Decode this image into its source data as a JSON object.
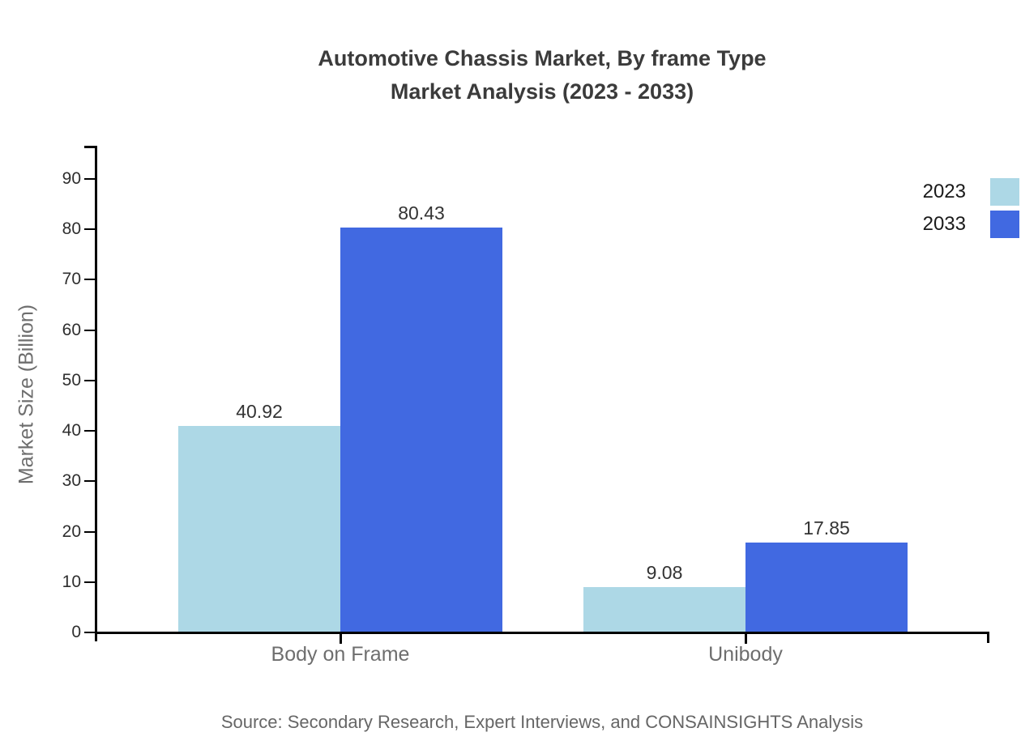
{
  "title": {
    "line1": "Automotive Chassis Market, By frame Type",
    "line2": "Market Analysis (2023 - 2033)"
  },
  "axes": {
    "ylabel": "Market Size (Billion)"
  },
  "source": "Source: Secondary Research, Expert Interviews, and CONSAINSIGHTS Analysis",
  "colors": {
    "series_2023": "#ADD8E6",
    "series_2033": "#4169E1",
    "axis": "#000000",
    "title_text": "#3b3b3b",
    "muted_text": "#6e6e6e"
  },
  "legend": [
    {
      "label": "2023",
      "color": "#ADD8E6"
    },
    {
      "label": "2033",
      "color": "#4169E1"
    }
  ],
  "chart_data": {
    "type": "bar",
    "categories": [
      "Body on Frame",
      "Unibody"
    ],
    "series": [
      {
        "name": "2023",
        "color": "#ADD8E6",
        "values": [
          40.92,
          9.08
        ]
      },
      {
        "name": "2033",
        "color": "#4169E1",
        "values": [
          80.43,
          17.85
        ]
      }
    ],
    "title": "Automotive Chassis Market, By frame Type Market Analysis (2023 - 2033)",
    "xlabel": "",
    "ylabel": "Market Size (Billion)",
    "ylim": [
      0,
      96
    ],
    "yticks": [
      0,
      10,
      20,
      30,
      40,
      50,
      60,
      70,
      80,
      90
    ],
    "grid": false,
    "legend_position": "top-right",
    "value_labels": true
  }
}
